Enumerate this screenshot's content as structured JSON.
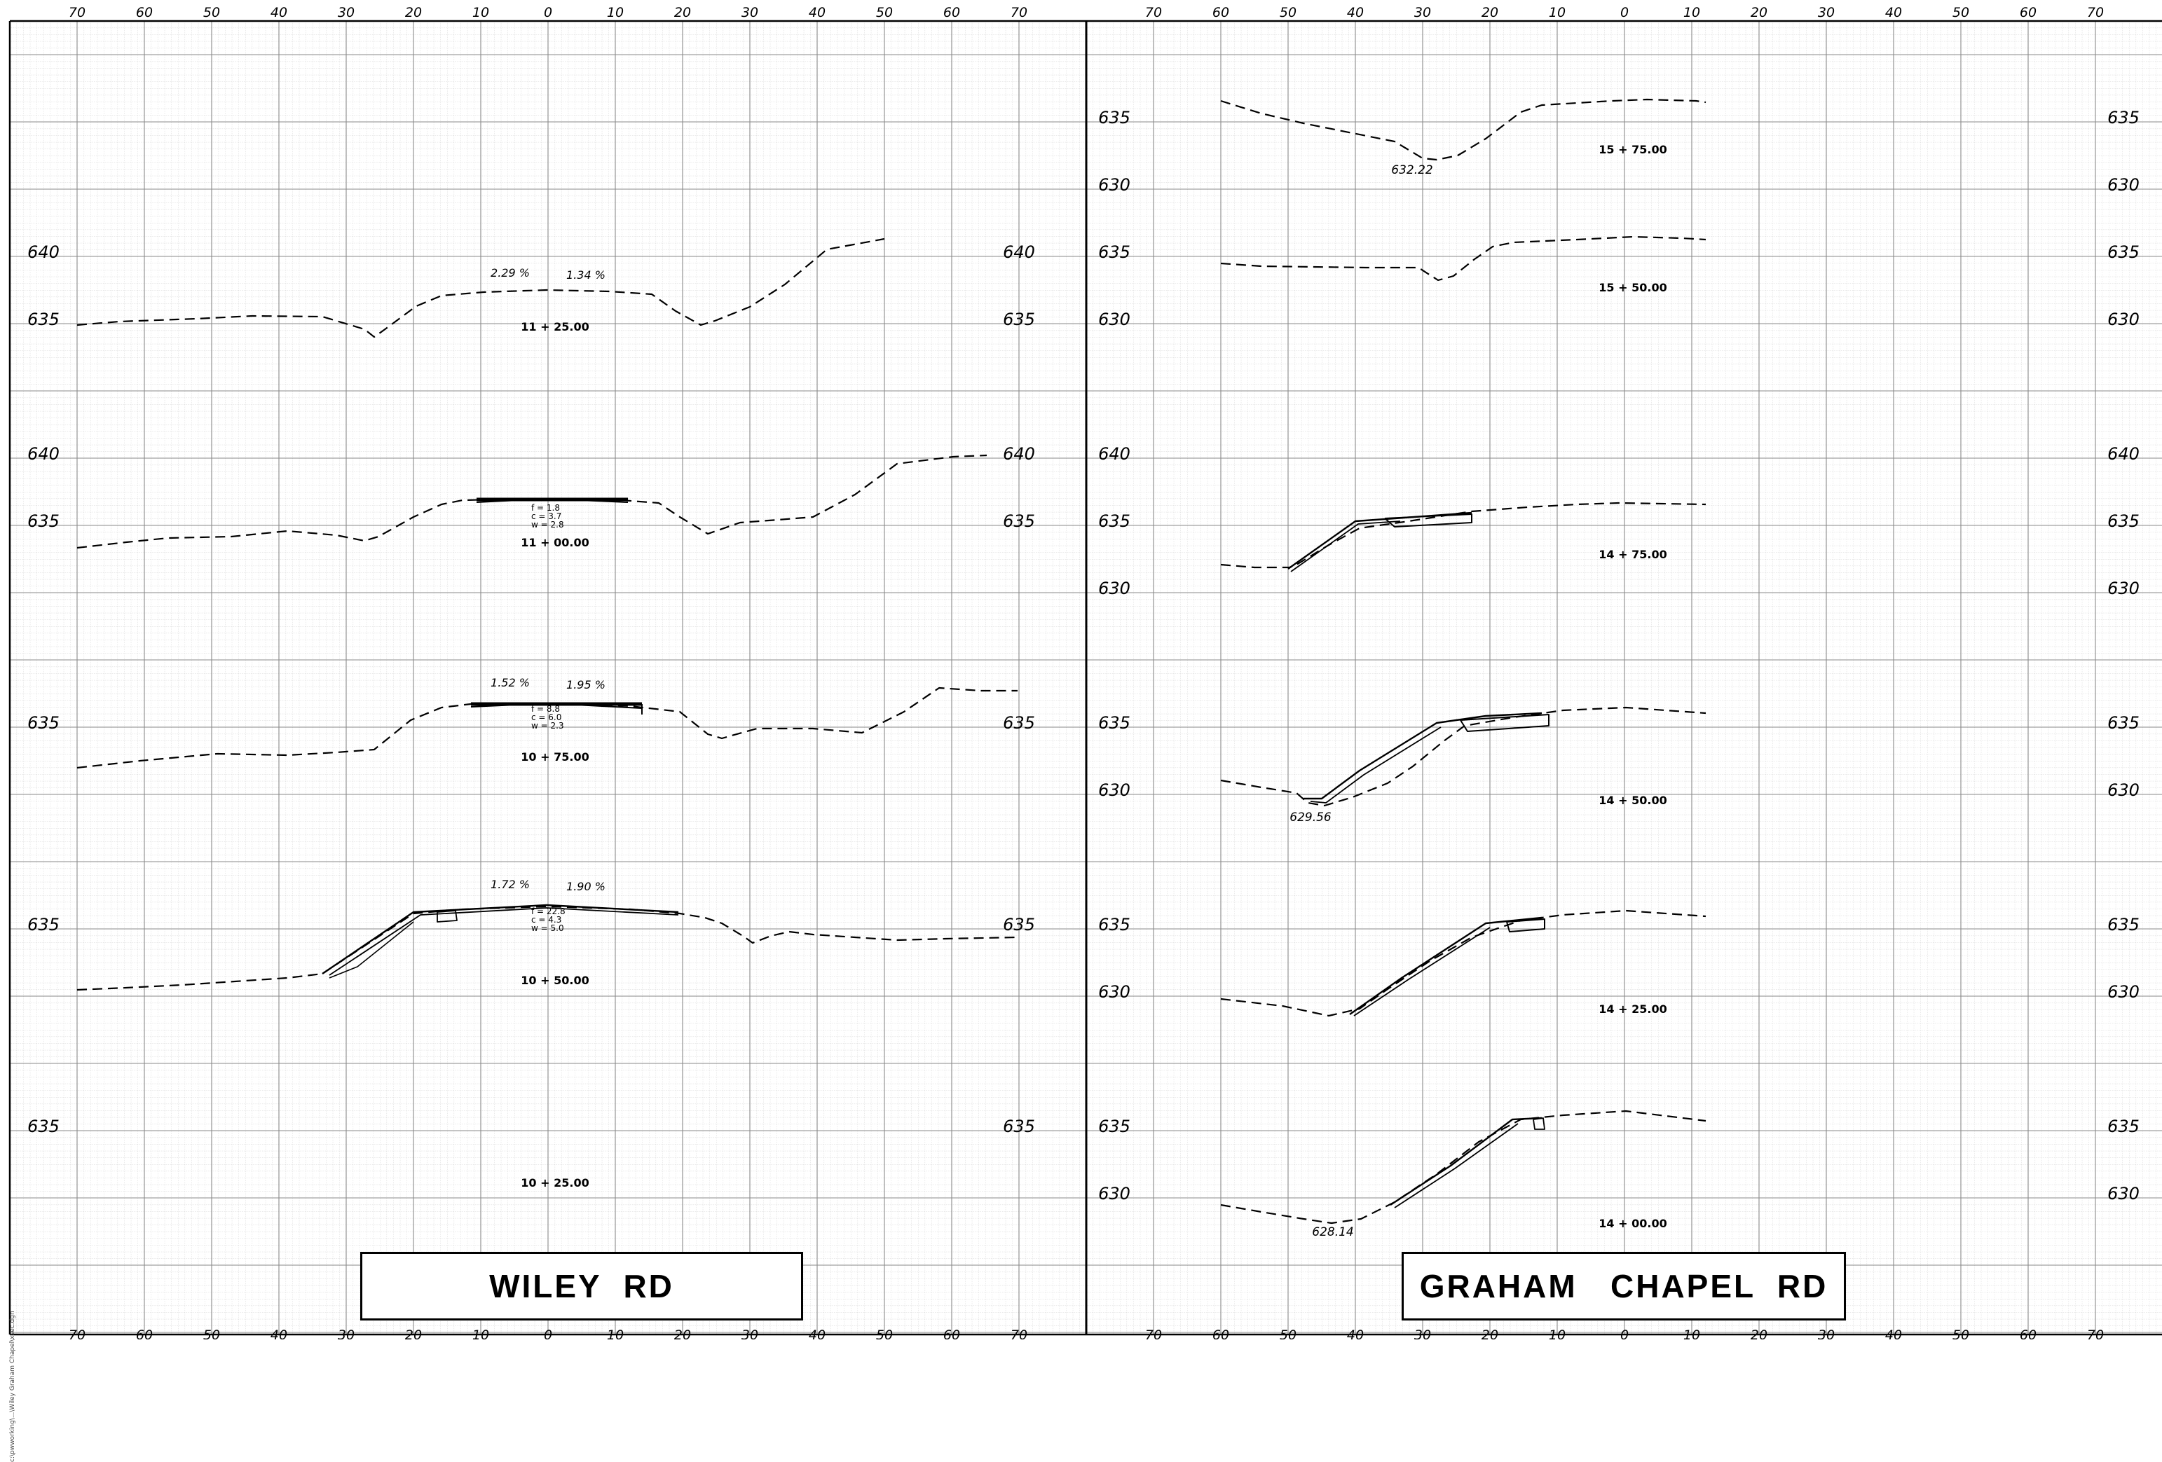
{
  "sheet": {
    "grid_top_scale": [
      "70",
      "60",
      "50",
      "40",
      "30",
      "20",
      "10",
      "0",
      "10",
      "20",
      "30",
      "40",
      "50",
      "60",
      "70"
    ],
    "grid_bottom_scale": [
      "70",
      "60",
      "50",
      "40",
      "30",
      "20",
      "10",
      "0",
      "10",
      "20",
      "30",
      "40",
      "50",
      "60",
      "70"
    ],
    "side_note": "c:\\pwworking\\...\\Wiley Graham Chapel\\xsec.dgn",
    "colors": {
      "grid_fine": "#d2d2d2",
      "grid_major": "#8a8a8a",
      "ink": "#000000",
      "paper": "#ffffff"
    }
  },
  "left_panel": {
    "title": "WILEY  RD",
    "elevation_labels": [
      {
        "row": 0,
        "labels": [
          "640",
          "635"
        ]
      },
      {
        "row": 1,
        "labels": [
          "640",
          "635"
        ]
      },
      {
        "row": 2,
        "labels": [
          "635"
        ]
      },
      {
        "row": 3,
        "labels": [
          "635"
        ]
      },
      {
        "row": 4,
        "labels": [
          "635"
        ]
      }
    ],
    "sections": [
      {
        "station": "11 + 25.00",
        "slopes": [
          "2.29 %",
          "1.34 %"
        ],
        "annot": []
      },
      {
        "station": "11 + 00.00",
        "slopes": [],
        "annot": [
          "f  =  1.8",
          "c  =  3.7",
          "w  =  2.8"
        ]
      },
      {
        "station": "10 + 75.00",
        "slopes": [
          "1.52 %",
          "1.95 %"
        ],
        "annot": [
          "f  =  8.8",
          "c  =  6.0",
          "w  =  2.3"
        ]
      },
      {
        "station": "10 + 50.00",
        "slopes": [
          "1.72 %",
          "1.90 %"
        ],
        "annot": [
          "f  =  22.8",
          "c  =  4.3",
          "w  =  5.0"
        ]
      },
      {
        "station": "10 + 25.00",
        "slopes": [],
        "annot": []
      }
    ]
  },
  "right_panel": {
    "title": "GRAHAM   CHAPEL  RD",
    "sections": [
      {
        "station": "15 + 75.00",
        "elevations": [
          "635",
          "630"
        ],
        "spot_elev": "632.22"
      },
      {
        "station": "15 + 50.00",
        "elevations": [
          "635",
          "630"
        ],
        "spot_elev": ""
      },
      {
        "station": "14 + 75.00",
        "elevations": [
          "640",
          "635",
          "630"
        ],
        "spot_elev": ""
      },
      {
        "station": "14 + 50.00",
        "elevations": [
          "635",
          "630"
        ],
        "spot_elev": "629.56"
      },
      {
        "station": "14 + 25.00",
        "elevations": [
          "635",
          "630"
        ],
        "spot_elev": ""
      },
      {
        "station": "14 + 00.00",
        "elevations": [
          "635",
          "630"
        ],
        "spot_elev": "628.14"
      }
    ]
  }
}
